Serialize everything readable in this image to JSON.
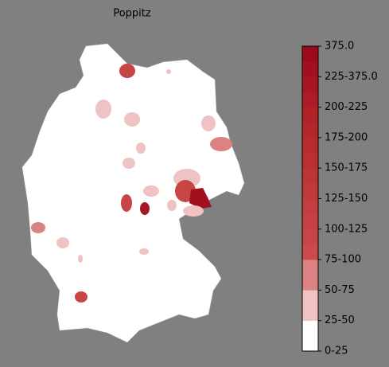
{
  "title": "Poppitz",
  "colorbar": {
    "ticks": [
      "0-25",
      "25-50",
      "50-75",
      "75-100",
      "100-125",
      "125-150",
      "150-175",
      "175-200",
      "200-225",
      "225-375.0",
      "375.0"
    ],
    "colors": [
      [
        "#ffffff"
      ],
      [
        "#efc3c3"
      ],
      [
        "#dc8282"
      ],
      [
        "#cb4a4a",
        "#c84545"
      ],
      [
        "#c64242",
        "#c33e3e"
      ],
      [
        "#c03a3a",
        "#bd3535"
      ],
      [
        "#ba3030",
        "#b72b2b"
      ],
      [
        "#b32629",
        "#b02226"
      ],
      [
        "#ab1c26",
        "#a71723"
      ],
      [
        "#a1101f",
        "#9b0a1d"
      ]
    ]
  }
}
